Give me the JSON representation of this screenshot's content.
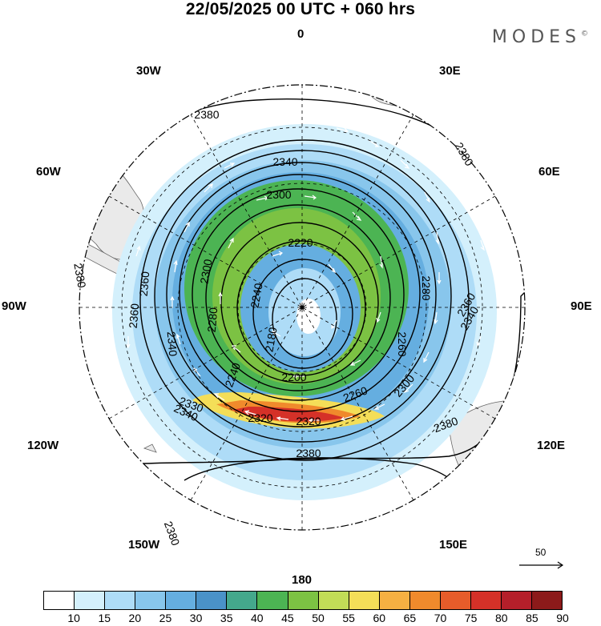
{
  "title": "22/05/2025  00 UTC  + 060 hrs",
  "brand": "MODES",
  "brand_mark": "©",
  "longitude_labels": {
    "top": "0",
    "bottom": "180",
    "left": "90W",
    "right": "90E",
    "w30": "30W",
    "e30": "30E",
    "w60": "60W",
    "e60": "60E",
    "w120": "120W",
    "e120": "120E",
    "w150": "150W",
    "e150": "150E"
  },
  "contour_labels": [
    "2380",
    "2340",
    "2300",
    "2220",
    "2380",
    "2380",
    "2360",
    "2340",
    "2300",
    "2280",
    "2240",
    "2180",
    "2360",
    "2340",
    "2280",
    "2260",
    "2240",
    "2200",
    "2260",
    "2300",
    "2330",
    "2380",
    "2320",
    "2320",
    "2340",
    "2380",
    "2380",
    "2360"
  ],
  "reference_vector": {
    "value": "50"
  },
  "colorbar": {
    "labels": [
      "10",
      "15",
      "20",
      "25",
      "30",
      "35",
      "40",
      "45",
      "50",
      "55",
      "60",
      "65",
      "70",
      "75",
      "80",
      "85",
      "90"
    ],
    "colors": [
      "#ffffff",
      "#d4f0fc",
      "#aedcf7",
      "#88c6ec",
      "#65aee0",
      "#4a92c8",
      "#44a88c",
      "#4cb453",
      "#7cc243",
      "#c2dc57",
      "#f4de58",
      "#f5b042",
      "#f08a2c",
      "#e65c2a",
      "#d53128",
      "#b51f2a",
      "#8c1a1a"
    ]
  },
  "map_colors": {
    "land": "#eaeaea",
    "coast": "#666666",
    "grid": "#000000",
    "contour": "#000000",
    "vector": "#ffffff"
  }
}
